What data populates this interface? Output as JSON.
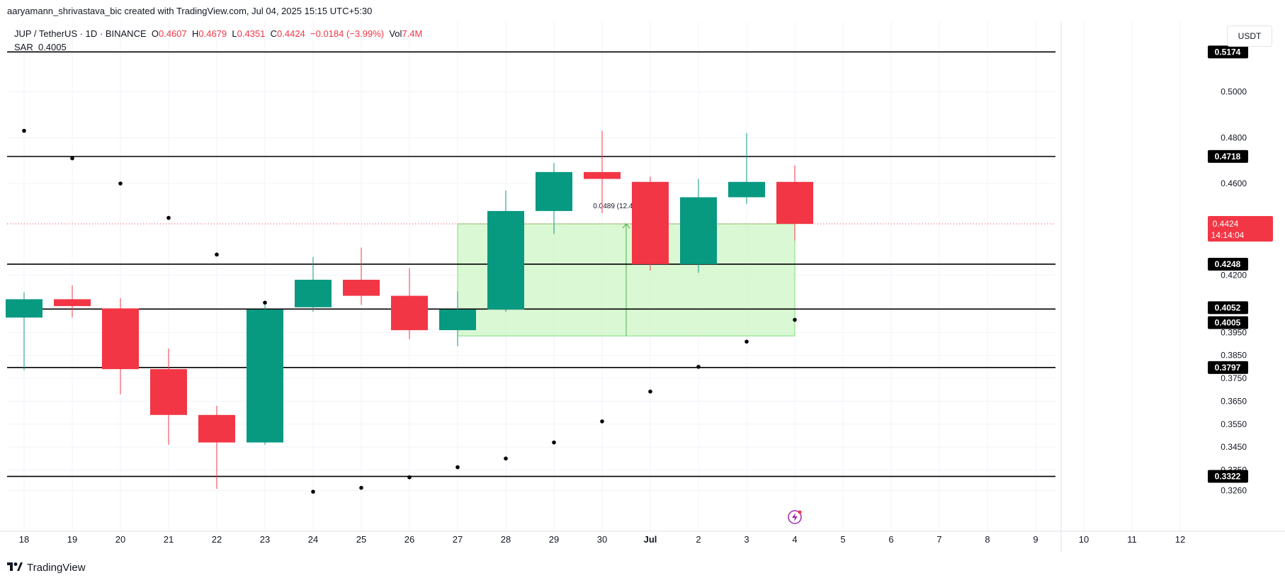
{
  "caption": "aaryamann_shrivastava_bic created with TradingView.com, Jul 04, 2025 15:15 UTC+5:30",
  "legend": {
    "symbol": "JUP / TetherUS · 1D · BINANCE",
    "o_label": "O",
    "o": "0.4607",
    "h_label": "H",
    "h": "0.4679",
    "l_label": "L",
    "l": "0.4351",
    "c_label": "C",
    "c": "0.4424",
    "change": "−0.0184 (−3.99%)",
    "vol_label": "Vol",
    "vol": "7.4M",
    "sar_label": "SAR",
    "sar": "0.4005"
  },
  "unit": "USDT",
  "brand": "TradingView",
  "colors": {
    "up": "#089981",
    "down": "#f23645",
    "range_fill": "#ccf5c2",
    "range_stroke": "#7be07b"
  },
  "chart_data": {
    "type": "candlestick",
    "x": [
      "18",
      "19",
      "20",
      "21",
      "22",
      "23",
      "24",
      "25",
      "26",
      "27",
      "28",
      "29",
      "30",
      "Jul",
      "2",
      "3",
      "4",
      "5",
      "6",
      "7",
      "8",
      "9",
      "10",
      "11",
      "12"
    ],
    "candles": [
      {
        "x": "18",
        "o": 0.4015,
        "h": 0.4125,
        "l": 0.3785,
        "c": 0.4095
      },
      {
        "x": "19",
        "o": 0.4095,
        "h": 0.4155,
        "l": 0.4015,
        "c": 0.4065
      },
      {
        "x": "20",
        "o": 0.4055,
        "h": 0.41,
        "l": 0.368,
        "c": 0.379
      },
      {
        "x": "21",
        "o": 0.379,
        "h": 0.388,
        "l": 0.346,
        "c": 0.359
      },
      {
        "x": "22",
        "o": 0.359,
        "h": 0.363,
        "l": 0.3268,
        "c": 0.347
      },
      {
        "x": "23",
        "o": 0.347,
        "h": 0.407,
        "l": 0.346,
        "c": 0.405
      },
      {
        "x": "24",
        "o": 0.406,
        "h": 0.428,
        "l": 0.404,
        "c": 0.418
      },
      {
        "x": "25",
        "o": 0.418,
        "h": 0.432,
        "l": 0.407,
        "c": 0.411
      },
      {
        "x": "26",
        "o": 0.411,
        "h": 0.423,
        "l": 0.392,
        "c": 0.396
      },
      {
        "x": "27",
        "o": 0.396,
        "h": 0.413,
        "l": 0.389,
        "c": 0.405
      },
      {
        "x": "28",
        "o": 0.405,
        "h": 0.457,
        "l": 0.404,
        "c": 0.448
      },
      {
        "x": "29",
        "o": 0.448,
        "h": 0.469,
        "l": 0.438,
        "c": 0.465
      },
      {
        "x": "30",
        "o": 0.465,
        "h": 0.483,
        "l": 0.447,
        "c": 0.462
      },
      {
        "x": "Jul",
        "o": 0.4607,
        "h": 0.463,
        "l": 0.422,
        "c": 0.4248
      },
      {
        "x": "2",
        "o": 0.4248,
        "h": 0.462,
        "l": 0.421,
        "c": 0.454
      },
      {
        "x": "3",
        "o": 0.454,
        "h": 0.482,
        "l": 0.451,
        "c": 0.4607
      },
      {
        "x": "4",
        "o": 0.4607,
        "h": 0.4679,
        "l": 0.4351,
        "c": 0.4424
      }
    ],
    "sar": [
      {
        "x": "18",
        "y": 0.483
      },
      {
        "x": "19",
        "y": 0.471
      },
      {
        "x": "20",
        "y": 0.46
      },
      {
        "x": "21",
        "y": 0.445
      },
      {
        "x": "22",
        "y": 0.429
      },
      {
        "x": "23",
        "y": 0.408
      },
      {
        "x": "24",
        "y": 0.3255
      },
      {
        "x": "25",
        "y": 0.3272
      },
      {
        "x": "26",
        "y": 0.3318
      },
      {
        "x": "27",
        "y": 0.3362
      },
      {
        "x": "28",
        "y": 0.34
      },
      {
        "x": "29",
        "y": 0.347
      },
      {
        "x": "30",
        "y": 0.3562
      },
      {
        "x": "Jul",
        "y": 0.3692
      },
      {
        "x": "2",
        "y": 0.38
      },
      {
        "x": "3",
        "y": 0.391
      },
      {
        "x": "4",
        "y": 0.4005
      }
    ],
    "levels": [
      0.5174,
      0.4718,
      0.4248,
      0.4052,
      0.3797,
      0.3322
    ],
    "level_labels": [
      "0.5174",
      "0.4718",
      "0.4248",
      "0.4052",
      "0.3797",
      "0.3322"
    ],
    "sar_label": "0.4005",
    "price_label": "0.4424",
    "countdown": "14:14:04",
    "y_ticks": [
      "0.5000",
      "0.4800",
      "0.4600",
      "0.4200",
      "0.3950",
      "0.3850",
      "0.3750",
      "0.3650",
      "0.3550",
      "0.3450",
      "0.3350",
      "0.3260"
    ],
    "y_tick_values": [
      0.5,
      0.48,
      0.46,
      0.42,
      0.395,
      0.385,
      0.375,
      0.365,
      0.355,
      0.345,
      0.335,
      0.326
    ],
    "range_box": {
      "x_start": "27",
      "x_end": "4",
      "y_low": 0.3935,
      "y_high": 0.4424
    },
    "range_label": "0.0489 (12.43%) 489",
    "ylim": [
      0.32,
      0.524
    ]
  }
}
